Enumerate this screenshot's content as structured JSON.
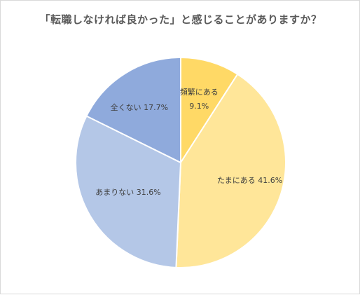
{
  "chart_data": {
    "type": "pie",
    "title": "「転職しなければ良かった」と感じることがありますか？",
    "categories": [
      "頻繁にある",
      "たまにある",
      "あまりない",
      "全くない"
    ],
    "values": [
      9.1,
      41.6,
      31.6,
      17.7
    ],
    "value_labels": [
      "9.1%",
      "41.6%",
      "31.6%",
      "17.7%"
    ],
    "colors": [
      "#ffd966",
      "#ffe699",
      "#b4c7e7",
      "#8faadc"
    ],
    "legend": "none",
    "start_angle": "12-o'clock",
    "direction": "clockwise"
  }
}
